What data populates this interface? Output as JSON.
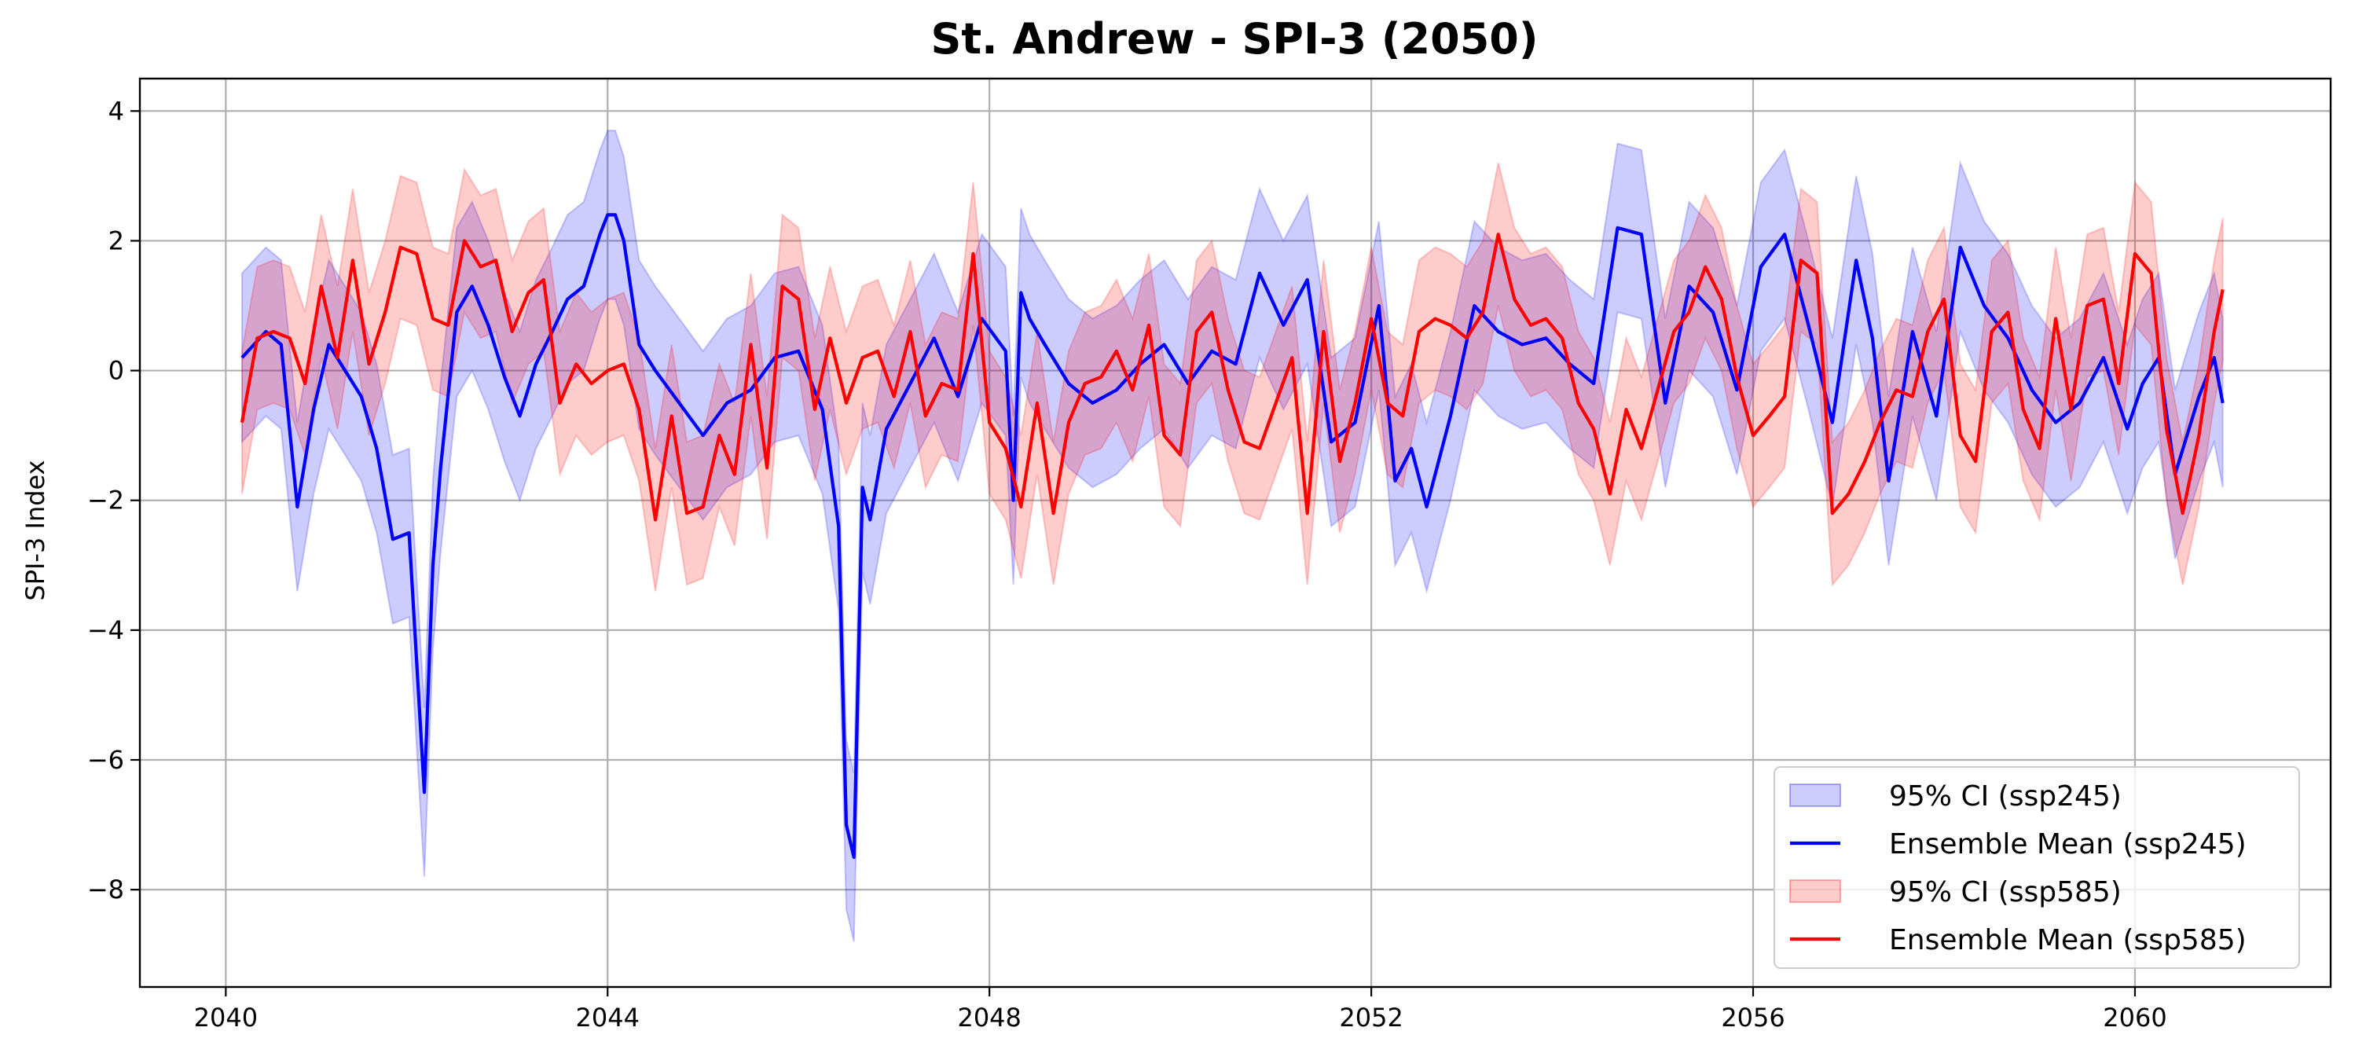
{
  "chart_data": {
    "type": "line",
    "title": "St. Andrew - SPI-3 (2050)",
    "xlabel": "",
    "ylabel": "SPI-3 Index",
    "xlim": [
      2039.1,
      2062.05
    ],
    "ylim": [
      -9.5,
      4.5
    ],
    "x_ticks": [
      2040,
      2044,
      2048,
      2052,
      2056,
      2060
    ],
    "x_tick_labels": [
      "2040",
      "2044",
      "2048",
      "2052",
      "2056",
      "2060"
    ],
    "y_ticks": [
      4,
      2,
      0,
      -2,
      -4,
      -6,
      -8
    ],
    "y_tick_labels": [
      "4",
      "2",
      "0",
      "−2",
      "−4",
      "−6",
      "−8"
    ],
    "grid": true,
    "legend_position": "lower-right",
    "legend": [
      {
        "label": "95% CI (ssp245)",
        "kind": "band",
        "color": "#0000ff"
      },
      {
        "label": "Ensemble Mean (ssp245)",
        "kind": "line",
        "color": "#0000ff"
      },
      {
        "label": "95% CI (ssp585)",
        "kind": "band",
        "color": "#ff0000"
      },
      {
        "label": "Ensemble Mean (ssp585)",
        "kind": "line",
        "color": "#ff0000"
      }
    ],
    "series": [
      {
        "name": "Ensemble Mean (ssp245)",
        "color": "#0000ff",
        "band_color": "#0000ff",
        "ci_half_width": 1.3,
        "x": [
          2040.17,
          2040.42,
          2040.58,
          2040.75,
          2040.92,
          2041.08,
          2041.25,
          2041.42,
          2041.58,
          2041.75,
          2041.92,
          2042.08,
          2042.17,
          2042.25,
          2042.42,
          2042.58,
          2042.75,
          2042.92,
          2043.08,
          2043.25,
          2043.42,
          2043.58,
          2043.75,
          2043.92,
          2044.0,
          2044.08,
          2044.17,
          2044.33,
          2044.5,
          2044.75,
          2045.0,
          2045.25,
          2045.5,
          2045.75,
          2046.0,
          2046.25,
          2046.42,
          2046.5,
          2046.58,
          2046.67,
          2046.75,
          2046.92,
          2047.17,
          2047.42,
          2047.67,
          2047.92,
          2048.17,
          2048.25,
          2048.33,
          2048.42,
          2048.58,
          2048.83,
          2049.08,
          2049.33,
          2049.58,
          2049.83,
          2050.08,
          2050.33,
          2050.58,
          2050.83,
          2051.08,
          2051.33,
          2051.58,
          2051.83,
          2052.08,
          2052.25,
          2052.42,
          2052.58,
          2052.83,
          2053.08,
          2053.33,
          2053.58,
          2053.83,
          2054.08,
          2054.33,
          2054.58,
          2054.83,
          2055.08,
          2055.33,
          2055.58,
          2055.83,
          2056.08,
          2056.33,
          2056.58,
          2056.83,
          2057.08,
          2057.25,
          2057.42,
          2057.67,
          2057.92,
          2058.17,
          2058.42,
          2058.67,
          2058.92,
          2059.17,
          2059.42,
          2059.67,
          2059.92,
          2060.08,
          2060.25,
          2060.42,
          2060.67,
          2060.83,
          2060.92
        ],
        "y": [
          0.2,
          0.6,
          0.4,
          -2.1,
          -0.6,
          0.4,
          0.0,
          -0.4,
          -1.2,
          -2.6,
          -2.5,
          -6.5,
          -3.0,
          -1.5,
          0.9,
          1.3,
          0.7,
          -0.1,
          -0.7,
          0.1,
          0.6,
          1.1,
          1.3,
          2.1,
          2.4,
          2.4,
          2.0,
          0.4,
          0.0,
          -0.5,
          -1.0,
          -0.5,
          -0.3,
          0.2,
          0.3,
          -0.6,
          -2.4,
          -7.0,
          -7.5,
          -1.8,
          -2.3,
          -0.9,
          -0.2,
          0.5,
          -0.4,
          0.8,
          0.3,
          -2.0,
          1.2,
          0.8,
          0.4,
          -0.2,
          -0.5,
          -0.3,
          0.1,
          0.4,
          -0.2,
          0.3,
          0.1,
          1.5,
          0.7,
          1.4,
          -1.1,
          -0.8,
          1.0,
          -1.7,
          -1.2,
          -2.1,
          -0.7,
          1.0,
          0.6,
          0.4,
          0.5,
          0.1,
          -0.2,
          2.2,
          2.1,
          -0.5,
          1.3,
          0.9,
          -0.3,
          1.6,
          2.1,
          0.7,
          -0.8,
          1.7,
          0.5,
          -1.7,
          0.6,
          -0.7,
          1.9,
          1.0,
          0.5,
          -0.3,
          -0.8,
          -0.5,
          0.2,
          -0.9,
          -0.2,
          0.2,
          -1.6,
          -0.4,
          0.2,
          -0.5
        ]
      },
      {
        "name": "Ensemble Mean (ssp585)",
        "color": "#ff0000",
        "band_color": "#ff0000",
        "ci_half_width": 1.1,
        "x": [
          2040.17,
          2040.33,
          2040.5,
          2040.67,
          2040.83,
          2041.0,
          2041.17,
          2041.33,
          2041.5,
          2041.67,
          2041.83,
          2042.0,
          2042.17,
          2042.33,
          2042.5,
          2042.67,
          2042.83,
          2043.0,
          2043.17,
          2043.33,
          2043.5,
          2043.67,
          2043.83,
          2044.0,
          2044.17,
          2044.33,
          2044.5,
          2044.67,
          2044.83,
          2045.0,
          2045.17,
          2045.33,
          2045.5,
          2045.67,
          2045.83,
          2046.0,
          2046.17,
          2046.33,
          2046.5,
          2046.67,
          2046.83,
          2047.0,
          2047.17,
          2047.33,
          2047.5,
          2047.67,
          2047.83,
          2048.0,
          2048.17,
          2048.33,
          2048.5,
          2048.67,
          2048.83,
          2049.0,
          2049.17,
          2049.33,
          2049.5,
          2049.67,
          2049.83,
          2050.0,
          2050.17,
          2050.33,
          2050.5,
          2050.67,
          2050.83,
          2051.0,
          2051.17,
          2051.33,
          2051.5,
          2051.67,
          2051.83,
          2052.0,
          2052.17,
          2052.33,
          2052.5,
          2052.67,
          2052.83,
          2053.0,
          2053.17,
          2053.33,
          2053.5,
          2053.67,
          2053.83,
          2054.0,
          2054.17,
          2054.33,
          2054.5,
          2054.67,
          2054.83,
          2055.0,
          2055.17,
          2055.33,
          2055.5,
          2055.67,
          2055.83,
          2056.0,
          2056.17,
          2056.33,
          2056.5,
          2056.67,
          2056.83,
          2057.0,
          2057.17,
          2057.33,
          2057.5,
          2057.67,
          2057.83,
          2058.0,
          2058.17,
          2058.33,
          2058.5,
          2058.67,
          2058.83,
          2059.0,
          2059.17,
          2059.33,
          2059.5,
          2059.67,
          2059.83,
          2060.0,
          2060.17,
          2060.33,
          2060.5,
          2060.67,
          2060.83,
          2060.92
        ],
        "y": [
          -0.8,
          0.5,
          0.6,
          0.5,
          -0.2,
          1.3,
          0.2,
          1.7,
          0.1,
          0.9,
          1.9,
          1.8,
          0.8,
          0.7,
          2.0,
          1.6,
          1.7,
          0.6,
          1.2,
          1.4,
          -0.5,
          0.1,
          -0.2,
          0.0,
          0.1,
          -0.6,
          -2.3,
          -0.7,
          -2.2,
          -2.1,
          -1.0,
          -1.6,
          0.4,
          -1.5,
          1.3,
          1.1,
          -0.6,
          0.5,
          -0.5,
          0.2,
          0.3,
          -0.4,
          0.6,
          -0.7,
          -0.2,
          -0.3,
          1.8,
          -0.8,
          -1.2,
          -2.1,
          -0.5,
          -2.2,
          -0.8,
          -0.2,
          -0.1,
          0.3,
          -0.3,
          0.7,
          -1.0,
          -1.3,
          0.6,
          0.9,
          -0.3,
          -1.1,
          -1.2,
          -0.5,
          0.2,
          -2.2,
          0.6,
          -1.4,
          -0.5,
          0.8,
          -0.5,
          -0.7,
          0.6,
          0.8,
          0.7,
          0.5,
          0.9,
          2.1,
          1.1,
          0.7,
          0.8,
          0.5,
          -0.5,
          -0.9,
          -1.9,
          -0.6,
          -1.2,
          -0.3,
          0.6,
          0.9,
          1.6,
          1.1,
          -0.1,
          -1.0,
          -0.7,
          -0.4,
          1.7,
          1.5,
          -2.2,
          -1.9,
          -1.4,
          -0.8,
          -0.3,
          -0.4,
          0.6,
          1.1,
          -1.0,
          -1.4,
          0.6,
          0.9,
          -0.6,
          -1.2,
          0.8,
          -0.6,
          1.0,
          1.1,
          -0.2,
          1.8,
          1.5,
          -0.9,
          -2.2,
          -1.0,
          0.6,
          1.25
        ]
      }
    ]
  }
}
